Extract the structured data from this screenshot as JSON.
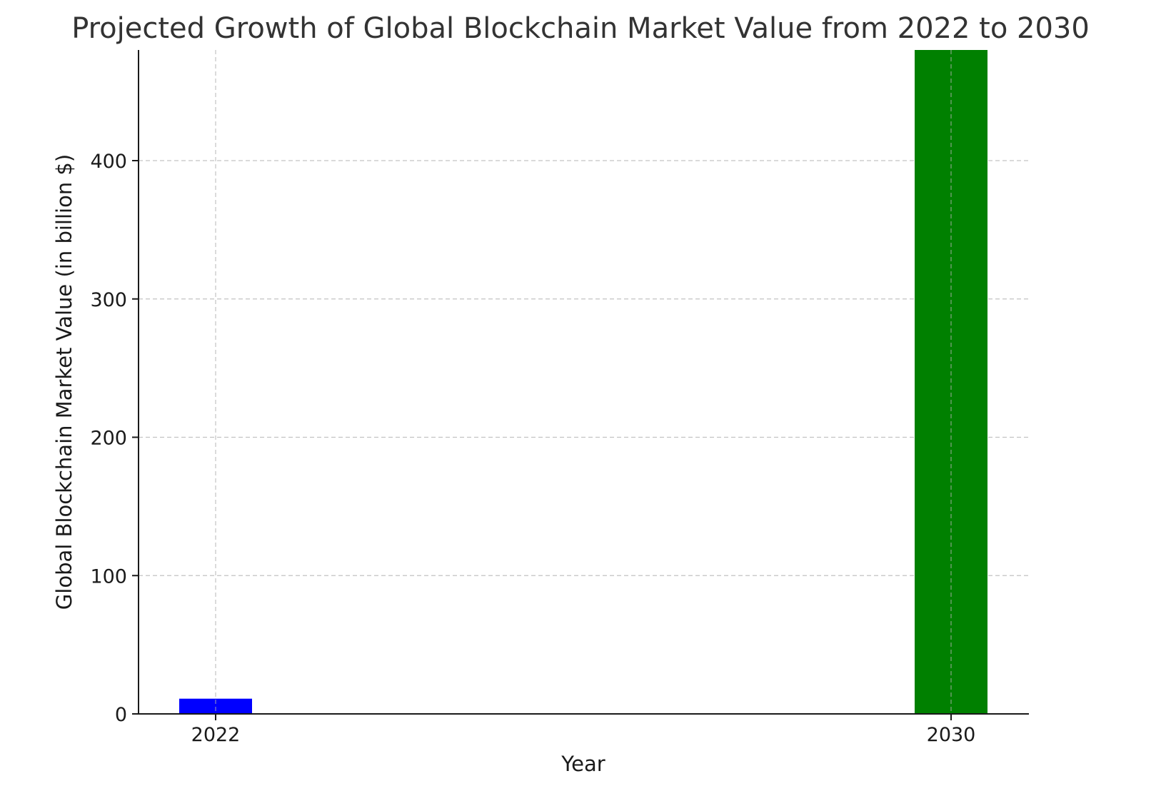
{
  "chart_data": {
    "type": "bar",
    "title": "Projected Growth of Global Blockchain Market Value from 2022 to 2030",
    "xlabel": "Year",
    "ylabel": "Global Blockchain Market Value (in billion $)",
    "categories": [
      "2022",
      "2030"
    ],
    "values": [
      11,
      480
    ],
    "colors": [
      "#0000ff",
      "#008000"
    ],
    "ylim": [
      0,
      480
    ],
    "yticks": [
      0,
      100,
      200,
      300,
      400
    ],
    "grid": true,
    "legend": "none"
  }
}
